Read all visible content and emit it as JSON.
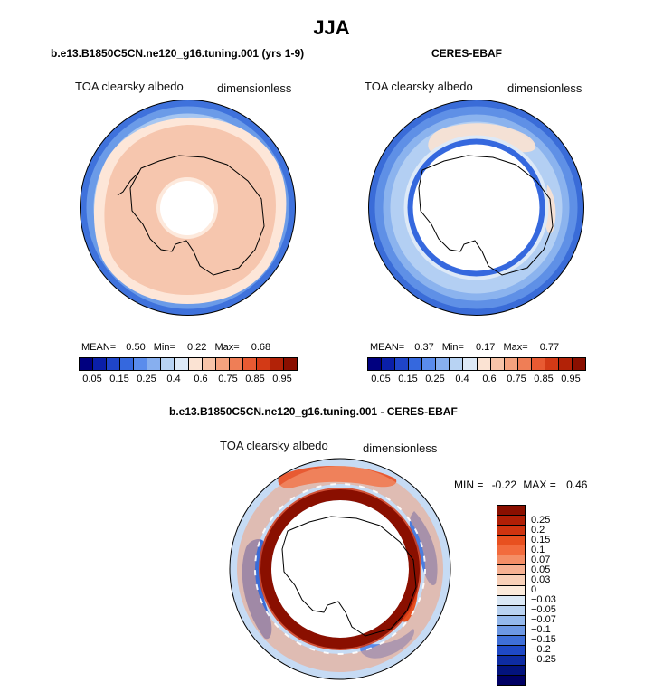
{
  "title": "JJA",
  "panels": {
    "model": {
      "title": "b.e13.B1850C5CN.ne120_g16.tuning.001 (yrs 1-9)",
      "variable": "TOA clearsky albedo",
      "units": "dimensionless",
      "stats": {
        "mean_label": "MEAN=",
        "mean": "0.50",
        "min_label": "Min=",
        "min": "0.22",
        "max_label": "Max=",
        "max": "0.68"
      }
    },
    "obs": {
      "title": "CERES-EBAF",
      "variable": "TOA clearsky albedo",
      "units": "dimensionless",
      "stats": {
        "mean_label": "MEAN=",
        "mean": "0.37",
        "min_label": "Min=",
        "min": "0.17",
        "max_label": "Max=",
        "max": "0.77"
      }
    },
    "diff": {
      "title": "b.e13.B1850C5CN.ne120_g16.tuning.001 - CERES-EBAF",
      "variable": "TOA clearsky albedo",
      "units": "dimensionless",
      "stats": {
        "min_label": "MIN =",
        "min": "-0.22",
        "max_label": "MAX =",
        "max": "0.46"
      }
    }
  },
  "colorbar_abs": {
    "colors": [
      "#00007f",
      "#0a1fa8",
      "#1f45c9",
      "#3568de",
      "#5a8cec",
      "#87afef",
      "#b8d3f3",
      "#dde9f7",
      "#fbe3d3",
      "#f7c4a8",
      "#f4a27e",
      "#ef7e56",
      "#e85a32",
      "#d33a16",
      "#b22207",
      "#8a0f00"
    ],
    "labels": [
      "0.05",
      "0.15",
      "0.25",
      "0.4",
      "0.6",
      "0.75",
      "0.85",
      "0.95"
    ]
  },
  "colorbar_diff": {
    "colors": [
      "#8a0f00",
      "#b01f06",
      "#cf3410",
      "#e8501f",
      "#f26b3d",
      "#f48e66",
      "#f6b192",
      "#f8d0b8",
      "#fbeadb",
      "#dae8f6",
      "#b9d2f1",
      "#94b8ec",
      "#6d98e4",
      "#3f6fd8",
      "#1f49c6",
      "#0e2ca3",
      "#03137d",
      "#000064"
    ],
    "labels": [
      "0.25",
      "0.2",
      "0.15",
      "0.1",
      "0.07",
      "0.05",
      "0.03",
      "0",
      "-0.03",
      "-0.05",
      "-0.07",
      "-0.1",
      "-0.15",
      "-0.2",
      "-0.25"
    ]
  }
}
